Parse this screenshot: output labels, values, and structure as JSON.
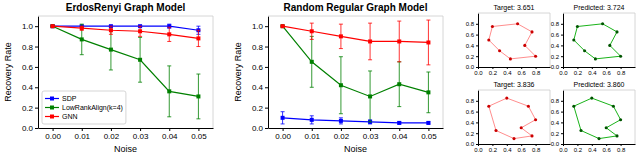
{
  "chart_data": [
    {
      "type": "line",
      "title": "ErdosRenyi Graph Model",
      "x_label": "Noise",
      "y_label": "Recovery Rate",
      "x": [
        0,
        0.01,
        0.02,
        0.03,
        0.04,
        0.05
      ],
      "xlim": [
        -0.005,
        0.055
      ],
      "xticks": [
        {
          "value": 0,
          "label": "0.00"
        },
        0.01,
        0.02,
        0.03,
        0.04,
        0.05
      ],
      "ylim": [
        0,
        1.1
      ],
      "yticks": [
        {
          "value": 0,
          "label": "0.0"
        },
        0.2,
        0.4,
        0.6,
        0.8,
        {
          "value": 1,
          "label": "1.0"
        }
      ],
      "legend": "lower left",
      "series": [
        {
          "name": "SDP",
          "color": "#0000ff",
          "marker": "square",
          "values": [
            1.0,
            1.0,
            1.0,
            1.0,
            1.0,
            0.96
          ],
          "errors": [
            0.005,
            0.005,
            0.005,
            0.005,
            0.02,
            0.04
          ]
        },
        {
          "name": "LowRankAlign(k=4)",
          "color": "#008000",
          "marker": "square",
          "values": [
            1.0,
            0.87,
            0.77,
            0.67,
            0.36,
            0.31
          ],
          "errors": [
            0.005,
            0.15,
            0.2,
            0.22,
            0.25,
            0.22
          ]
        },
        {
          "name": "GNN",
          "color": "#ff0000",
          "marker": "square",
          "values": [
            1.0,
            0.98,
            0.96,
            0.95,
            0.92,
            0.88
          ],
          "errors": [
            0.005,
            0.02,
            0.04,
            0.05,
            0.07,
            0.08
          ]
        }
      ]
    },
    {
      "type": "line",
      "title": "Random Regular Graph Model",
      "x_label": "Noise",
      "y_label": "Recovery Rate",
      "x": [
        0,
        0.01,
        0.02,
        0.03,
        0.04,
        0.05
      ],
      "xlim": [
        -0.005,
        0.055
      ],
      "xticks": [
        {
          "value": 0,
          "label": "0.00"
        },
        0.01,
        0.02,
        0.03,
        0.04,
        0.05
      ],
      "ylim": [
        0,
        1.1
      ],
      "yticks": [
        {
          "value": 0,
          "label": "0.0"
        },
        0.2,
        0.4,
        0.6,
        0.8,
        {
          "value": 1,
          "label": "1.0"
        }
      ],
      "series": [
        {
          "color": "#0000ff",
          "marker": "square",
          "values": [
            0.1,
            0.08,
            0.07,
            0.06,
            0.05,
            0.05
          ],
          "errors": [
            0.06,
            0.04,
            0.03,
            0.02,
            0.01,
            0.01
          ]
        },
        {
          "color": "#008000",
          "marker": "square",
          "values": [
            1.0,
            0.65,
            0.42,
            0.31,
            0.43,
            0.35
          ],
          "errors": [
            0.005,
            0.25,
            0.28,
            0.25,
            0.22,
            0.2
          ]
        },
        {
          "color": "#ff0000",
          "marker": "square",
          "values": [
            1.0,
            0.95,
            0.9,
            0.85,
            0.85,
            0.84
          ],
          "errors": [
            0.005,
            0.08,
            0.12,
            0.18,
            0.2,
            0.22
          ]
        }
      ]
    },
    {
      "type": "line",
      "title": "Target: 3.651",
      "xlim": [
        0,
        1
      ],
      "ylim": [
        0,
        1
      ],
      "xticks": [
        {
          "value": 0,
          "label": "0.0"
        },
        0.2,
        0.4,
        0.6,
        0.8
      ],
      "yticks": [
        {
          "value": 0,
          "label": "0.0"
        },
        0.2,
        0.4,
        0.6,
        0.8
      ],
      "series": [
        {
          "type": "line",
          "color": "#ff8080",
          "x": [
            0.2,
            0.55,
            0.75,
            0.65,
            0.8,
            0.45,
            0.3,
            0.15,
            0.2
          ],
          "values": [
            0.75,
            0.8,
            0.65,
            0.4,
            0.2,
            0.15,
            0.3,
            0.5,
            0.75
          ]
        },
        {
          "type": "scatter",
          "color": "#cc0000",
          "x": [
            0.2,
            0.55,
            0.75,
            0.65,
            0.8,
            0.45,
            0.3,
            0.15
          ],
          "values": [
            0.75,
            0.8,
            0.65,
            0.4,
            0.2,
            0.15,
            0.3,
            0.5
          ]
        }
      ]
    },
    {
      "type": "line",
      "title": "Predicted: 3.724",
      "xlim": [
        0,
        1
      ],
      "ylim": [
        0,
        1
      ],
      "xticks": [
        {
          "value": 0,
          "label": "0.0"
        },
        0.2,
        0.4,
        0.6,
        0.8
      ],
      "yticks": [
        {
          "value": 0,
          "label": "0.0"
        },
        0.2,
        0.4,
        0.6,
        0.8
      ],
      "series": [
        {
          "type": "line",
          "color": "#00aa00",
          "x": [
            0.2,
            0.55,
            0.75,
            0.65,
            0.8,
            0.45,
            0.3,
            0.15,
            0.2
          ],
          "values": [
            0.75,
            0.8,
            0.65,
            0.4,
            0.2,
            0.15,
            0.3,
            0.5,
            0.75
          ]
        },
        {
          "type": "scatter",
          "color": "#005500",
          "x": [
            0.2,
            0.55,
            0.75,
            0.65,
            0.8,
            0.45,
            0.3,
            0.15
          ],
          "values": [
            0.75,
            0.8,
            0.65,
            0.4,
            0.2,
            0.15,
            0.3,
            0.5
          ]
        }
      ]
    },
    {
      "type": "line",
      "title": "Target: 3.836",
      "xlim": [
        0,
        1
      ],
      "ylim": [
        0,
        1
      ],
      "xticks": [
        {
          "value": 0,
          "label": "0.0"
        },
        0.2,
        0.4,
        0.6,
        0.8
      ],
      "yticks": [
        {
          "value": 0,
          "label": "0.0"
        },
        0.2,
        0.4,
        0.6,
        0.8
      ],
      "series": [
        {
          "type": "line",
          "color": "#ff8080",
          "x": [
            0.15,
            0.4,
            0.7,
            0.8,
            0.6,
            0.75,
            0.5,
            0.25,
            0.15
          ],
          "values": [
            0.7,
            0.85,
            0.7,
            0.45,
            0.3,
            0.15,
            0.1,
            0.25,
            0.7
          ]
        },
        {
          "type": "scatter",
          "color": "#cc0000",
          "x": [
            0.15,
            0.4,
            0.7,
            0.8,
            0.6,
            0.75,
            0.5,
            0.25
          ],
          "values": [
            0.7,
            0.85,
            0.7,
            0.45,
            0.3,
            0.15,
            0.1,
            0.25
          ]
        }
      ]
    },
    {
      "type": "line",
      "title": "Predicted: 3.860",
      "xlim": [
        0,
        1
      ],
      "ylim": [
        0,
        1
      ],
      "xticks": [
        {
          "value": 0,
          "label": "0.0"
        },
        0.2,
        0.4,
        0.6,
        0.8
      ],
      "yticks": [
        {
          "value": 0,
          "label": "0.0"
        },
        0.2,
        0.4,
        0.6,
        0.8
      ],
      "series": [
        {
          "type": "line",
          "color": "#00aa00",
          "x": [
            0.15,
            0.4,
            0.7,
            0.8,
            0.6,
            0.75,
            0.5,
            0.25,
            0.15
          ],
          "values": [
            0.7,
            0.85,
            0.7,
            0.45,
            0.3,
            0.15,
            0.1,
            0.25,
            0.7
          ]
        },
        {
          "type": "scatter",
          "color": "#005500",
          "x": [
            0.15,
            0.4,
            0.7,
            0.8,
            0.6,
            0.75,
            0.5,
            0.25
          ],
          "values": [
            0.7,
            0.85,
            0.7,
            0.45,
            0.3,
            0.15,
            0.1,
            0.25
          ]
        }
      ]
    }
  ]
}
